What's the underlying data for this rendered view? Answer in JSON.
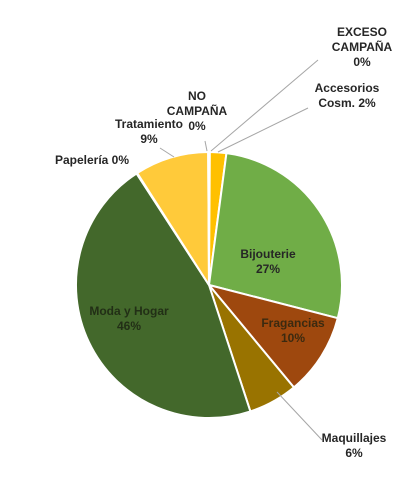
{
  "chart_data": {
    "type": "pie",
    "start_angle_deg": 0,
    "direction": "clockwise",
    "slices": [
      {
        "name": "EXCESO CAMPAÑA",
        "pct_label": "0%",
        "value": 0.1,
        "color": "#a5a5a5"
      },
      {
        "name": "Accesorios Cosm.",
        "pct_label": "2%",
        "value": 2,
        "color": "#ffc000"
      },
      {
        "name": "Bijouterie",
        "pct_label": "27%",
        "value": 27,
        "color": "#70ad47"
      },
      {
        "name": "Fragancias",
        "pct_label": "10%",
        "value": 10,
        "color": "#9e480e"
      },
      {
        "name": "Maquillajes",
        "pct_label": "6%",
        "value": 6,
        "color": "#997300"
      },
      {
        "name": "Moda y Hogar",
        "pct_label": "46%",
        "value": 46,
        "color": "#43682b"
      },
      {
        "name": "Papelería",
        "pct_label": "0%",
        "value": 0.1,
        "color": "#5b9bd5"
      },
      {
        "name": "Tratamiento",
        "pct_label": "9%",
        "value": 9,
        "color": "#ffca3a"
      },
      {
        "name": "NO CAMPAÑA",
        "pct_label": "0%",
        "value": 0.1,
        "color": "#4472c4"
      }
    ],
    "labels": [
      {
        "lines": [
          "EXCESO",
          "CAMPAÑA",
          "0%"
        ]
      },
      {
        "lines": [
          "Accesorios",
          "Cosm. 2%"
        ]
      },
      {
        "lines": [
          "Bijouterie",
          "27%"
        ]
      },
      {
        "lines": [
          "Fragancias",
          "10%"
        ]
      },
      {
        "lines": [
          "Maquillajes",
          "6%"
        ]
      },
      {
        "lines": [
          "Moda y Hogar",
          "46%"
        ]
      },
      {
        "lines": [
          "Papelería 0%"
        ]
      },
      {
        "lines": [
          "Tratamiento",
          "9%"
        ]
      },
      {
        "lines": [
          "NO",
          "CAMPAÑA",
          "0%"
        ]
      }
    ]
  }
}
